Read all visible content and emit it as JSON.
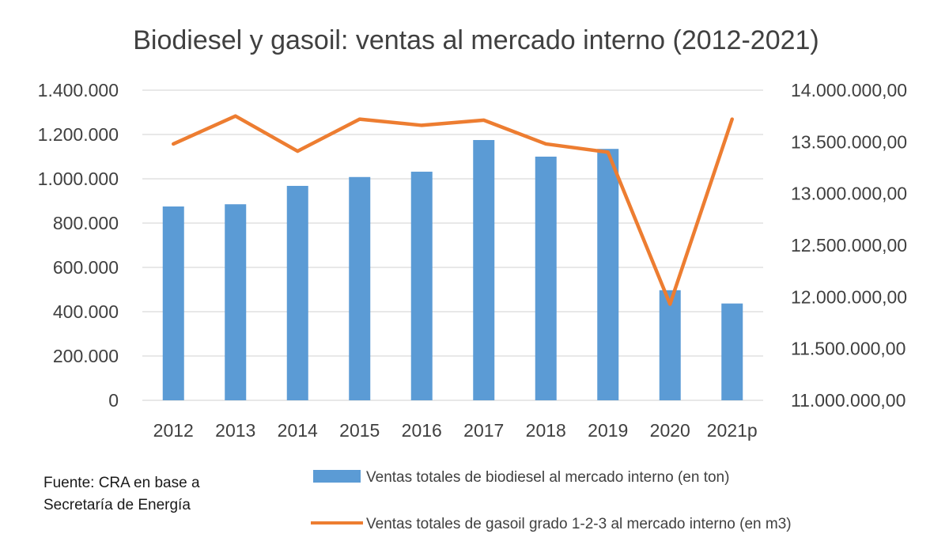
{
  "chart_data": {
    "type": "bar",
    "title": "Biodiesel y gasoil: ventas al mercado interno (2012-2021)",
    "categories": [
      "2012",
      "2013",
      "2014",
      "2015",
      "2016",
      "2017",
      "2018",
      "2019",
      "2020",
      "2021p"
    ],
    "series": [
      {
        "name": "Ventas totales de biodiesel al mercado interno (en ton)",
        "type": "bar",
        "axis": "left",
        "color": "#5b9bd5",
        "values": [
          875000,
          885000,
          968000,
          1008000,
          1032000,
          1175000,
          1100000,
          1135000,
          497000,
          437000
        ]
      },
      {
        "name": "Ventas totales de gasoil grado 1-2-3 al mercado interno (en m3)",
        "type": "line",
        "axis": "right",
        "color": "#ed7d31",
        "values": [
          13480000,
          13750000,
          13410000,
          13720000,
          13660000,
          13710000,
          13480000,
          13400000,
          11930000,
          13720000
        ]
      }
    ],
    "y_left": {
      "ylim": [
        0,
        1400000
      ],
      "ticks": [
        "0",
        "200.000",
        "400.000",
        "600.000",
        "800.000",
        "1.000.000",
        "1.200.000",
        "1.400.000"
      ]
    },
    "y_right": {
      "ylim": [
        11000000,
        14000000
      ],
      "ticks": [
        "11.000.000,00",
        "11.500.000,00",
        "12.000.000,00",
        "12.500.000,00",
        "13.000.000,00",
        "13.500.000,00",
        "14.000.000,00"
      ]
    },
    "grid": true,
    "legend_position": "bottom"
  },
  "source_note": [
    "Fuente: CRA en base a",
    "Secretaría de Energía"
  ]
}
